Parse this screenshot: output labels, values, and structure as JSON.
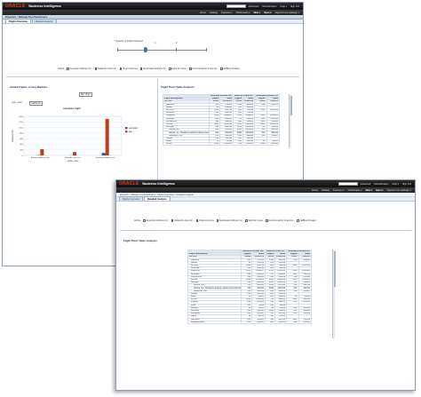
{
  "brand": {
    "oracle": "ORACLE",
    "product": "Business Intelligence"
  },
  "topmenu": [
    "Home",
    "Catalog",
    "Favorites ▾",
    "Dashboards ▾",
    "New ▾",
    "Open ▾",
    "Signed In As  weblogic ▾"
  ],
  "topmenu_right": [
    "Advanced",
    "Administration",
    "Help ▾",
    "Sign Out"
  ],
  "dashboard": {
    "name": "Dispatch > Mileage Test Dashboard"
  },
  "tabs": [
    "Flights Overview",
    "Detailed Analysis"
  ],
  "crumbs": "Dispatch > Mileage Test Dashboard > Flights Overview > Detailed Analysis",
  "slider": {
    "label": "* Quantity of Flights Delayed",
    "ticks": [
      "0",
      "1",
      "2",
      "3"
    ]
  },
  "carriers": {
    "label": "Airline",
    "items": [
      {
        "name": "American Airlines Inc.",
        "checked": true
      },
      {
        "name": "Delta Air Lines Inc.",
        "checked": true
      },
      {
        "name": "Virgin America",
        "checked": false
      },
      {
        "name": "Southwest Airlines Co.",
        "checked": true
      },
      {
        "name": "Spirit Air Lines",
        "checked": false
      },
      {
        "name": "Continental Air Lines Inc.",
        "checked": false
      },
      {
        "name": "JetBlue Airways",
        "checked": false
      }
    ],
    "checkmark": "✓"
  },
  "win1": {
    "left_section_title": "Added Flights to Key Markets",
    "view_label": "Bar Chart",
    "dest_state_label": "dest_state",
    "dest_state_value": "California",
    "chart_heading": "cancelled_flight",
    "pivot_title": "Flight Pivot Table Analysis"
  },
  "win2": {
    "pivot_title": "Flight Pivot Table Analysis"
  },
  "pivot": {
    "corner_header": "Flight Destinations",
    "columns": [
      "American Airlines Inc.",
      "Delta Air Lines Inc.",
      "Southwest Airlines Co."
    ],
    "subcolumns": [
      "Flights",
      "Miles"
    ],
    "rows": [
      {
        "label": "All USA",
        "values": [
          "21860",
          "12345673",
          "24012",
          "11984316",
          "14112",
          "7461201"
        ]
      },
      {
        "label": "Alabama",
        "values": [
          "301",
          "179512",
          "1442",
          "492301",
          "344",
          "168210"
        ]
      },
      {
        "label": "Alaska",
        "values": [
          "95",
          "241003",
          "212",
          "556120",
          "",
          ""
        ]
      },
      {
        "label": "Arizona",
        "values": [
          "1024",
          "956712",
          "688",
          "742018",
          "1802",
          "1123456"
        ]
      },
      {
        "label": "Arkansas",
        "values": [
          "410",
          "244103",
          "122",
          "86210",
          "",
          ""
        ]
      },
      {
        "label": "California",
        "values": [
          "4012",
          "5412367",
          "1933",
          "3012456",
          "3511",
          "2145901"
        ]
      },
      {
        "label": "Colorado",
        "values": [
          "988",
          "820145",
          "734",
          "602341",
          "1101",
          "861230"
        ]
      },
      {
        "label": "Connecticut",
        "values": [
          "322",
          "301245",
          "402",
          "311009",
          "298",
          "214560"
        ]
      },
      {
        "label": "Florida",
        "values": [
          "2844",
          "2456100",
          "2610",
          "1996503",
          "1420",
          "1034512"
        ]
      },
      {
        "label": "Georgia",
        "values": [
          "612",
          "401230",
          "6120",
          "3561200",
          "702",
          "456001"
        ]
      },
      {
        "label": "Atlanta, GA",
        "values": [
          "402",
          "261200",
          "5830",
          "3401112",
          "512",
          "302114"
        ]
      },
      {
        "label": "Atlanta, GA: Hartsfield-Jackson Atlanta International",
        "values": [
          "402",
          "261200",
          "5830",
          "3401112",
          "512",
          "302114"
        ]
      },
      {
        "label": "Savannah, GA",
        "values": [
          "210",
          "140030",
          "290",
          "160088",
          "190",
          "153887"
        ]
      },
      {
        "label": "Hawaii",
        "values": [
          "240",
          "602113",
          "201",
          "511300",
          "",
          ""
        ]
      },
      {
        "label": "Idaho",
        "values": [
          "56",
          "61200",
          "140",
          "101230",
          "88",
          "61230"
        ]
      },
      {
        "label": "Illinois",
        "values": [
          "1820",
          "1340110",
          "744",
          "501223",
          "1402",
          "912300"
        ]
      },
      {
        "label": "Indiana",
        "values": [
          "288",
          "201002",
          "310",
          "198233",
          "612",
          "401223"
        ]
      },
      {
        "label": "Iowa",
        "values": [
          "102",
          "78112",
          "144",
          "98012",
          "",
          ""
        ]
      },
      {
        "label": "Kansas",
        "values": [
          "96",
          "70334",
          "90",
          "61012",
          "201",
          "131002"
        ]
      },
      {
        "label": "Kentucky",
        "values": [
          "188",
          "120330",
          "1020",
          "610223",
          "312",
          "201220"
        ]
      },
      {
        "label": "Louisiana",
        "values": [
          "344",
          "260117",
          "512",
          "330112",
          "806",
          "501339"
        ]
      },
      {
        "label": "Maine",
        "values": [
          "44",
          "40121",
          "110",
          "88123",
          "",
          ""
        ]
      },
      {
        "label": "Maryland",
        "values": [
          "402",
          "301220",
          "590",
          "402113",
          "1120",
          "701228"
        ]
      },
      {
        "label": "Massachusetts",
        "values": [
          "812",
          "801223",
          "690",
          "601002",
          "402",
          "351002"
        ]
      }
    ]
  },
  "chart_data": {
    "type": "bar",
    "title": "cancelled_flight",
    "xlabel": "carrier_desc",
    "ylabel": "Delays (Cnt)",
    "categories": [
      "American Airlines Inc.",
      "Delta Air Lines Inc.",
      "Southwest Airlines Co."
    ],
    "series": [
      {
        "name": "cancelled",
        "color": "#2f5597",
        "values": [
          12,
          6,
          90
        ]
      },
      {
        "name": "late",
        "color": "#c0391b",
        "values": [
          225,
          118,
          1310
        ]
      }
    ],
    "yticks": [
      0,
      200,
      400,
      600,
      800,
      1000,
      1200,
      1400
    ],
    "ylim": [
      0,
      1400
    ],
    "legend": "right"
  }
}
